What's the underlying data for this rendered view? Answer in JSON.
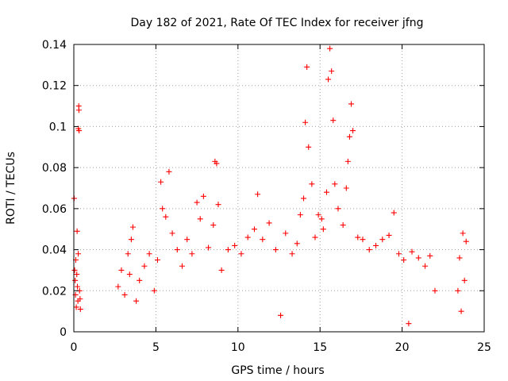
{
  "chart_data": {
    "type": "scatter",
    "title": "Day 182 of 2021, Rate Of TEC Index for receiver jfng",
    "xlabel": "GPS time / hours",
    "ylabel": "ROTI / TECUs",
    "xlim": [
      0,
      25
    ],
    "ylim": [
      0,
      0.14
    ],
    "grid": true,
    "marker": "+",
    "series_color": "#ff0000",
    "x_ticks": [
      0,
      5,
      10,
      15,
      20,
      25
    ],
    "x_tick_labels": [
      "0",
      "5",
      "10",
      "15",
      "20",
      "25"
    ],
    "y_ticks": [
      0,
      0.02,
      0.04,
      0.06,
      0.08,
      0.1,
      0.12,
      0.14
    ],
    "y_tick_labels": [
      "0",
      "0.02",
      "0.04",
      "0.06",
      "0.08",
      "0.1",
      "0.12",
      "0.14"
    ],
    "series": [
      {
        "name": "ROTI",
        "points": [
          [
            0.02,
            0.065
          ],
          [
            0.05,
            0.03
          ],
          [
            0.08,
            0.025
          ],
          [
            0.1,
            0.018
          ],
          [
            0.12,
            0.035
          ],
          [
            0.15,
            0.012
          ],
          [
            0.18,
            0.028
          ],
          [
            0.2,
            0.049
          ],
          [
            0.22,
            0.022
          ],
          [
            0.25,
            0.015
          ],
          [
            0.27,
            0.038
          ],
          [
            0.28,
            0.099
          ],
          [
            0.3,
            0.11
          ],
          [
            0.31,
            0.108
          ],
          [
            0.32,
            0.098
          ],
          [
            0.35,
            0.02
          ],
          [
            0.38,
            0.016
          ],
          [
            0.4,
            0.011
          ],
          [
            2.7,
            0.022
          ],
          [
            2.9,
            0.03
          ],
          [
            3.1,
            0.018
          ],
          [
            3.3,
            0.038
          ],
          [
            3.4,
            0.028
          ],
          [
            3.5,
            0.045
          ],
          [
            3.6,
            0.051
          ],
          [
            3.8,
            0.015
          ],
          [
            4.0,
            0.025
          ],
          [
            4.3,
            0.032
          ],
          [
            4.6,
            0.038
          ],
          [
            4.9,
            0.02
          ],
          [
            5.1,
            0.035
          ],
          [
            5.3,
            0.073
          ],
          [
            5.4,
            0.06
          ],
          [
            5.6,
            0.056
          ],
          [
            5.8,
            0.078
          ],
          [
            6.0,
            0.048
          ],
          [
            6.3,
            0.04
          ],
          [
            6.6,
            0.032
          ],
          [
            6.9,
            0.045
          ],
          [
            7.2,
            0.038
          ],
          [
            7.5,
            0.063
          ],
          [
            7.7,
            0.055
          ],
          [
            7.9,
            0.066
          ],
          [
            8.2,
            0.041
          ],
          [
            8.5,
            0.052
          ],
          [
            8.6,
            0.083
          ],
          [
            8.7,
            0.082
          ],
          [
            8.8,
            0.062
          ],
          [
            9.0,
            0.03
          ],
          [
            9.4,
            0.04
          ],
          [
            9.8,
            0.042
          ],
          [
            10.2,
            0.038
          ],
          [
            10.6,
            0.046
          ],
          [
            11.0,
            0.05
          ],
          [
            11.2,
            0.067
          ],
          [
            11.5,
            0.045
          ],
          [
            11.9,
            0.053
          ],
          [
            12.3,
            0.04
          ],
          [
            12.6,
            0.008
          ],
          [
            12.9,
            0.048
          ],
          [
            13.3,
            0.038
          ],
          [
            13.6,
            0.043
          ],
          [
            13.8,
            0.057
          ],
          [
            14.0,
            0.065
          ],
          [
            14.1,
            0.102
          ],
          [
            14.2,
            0.129
          ],
          [
            14.3,
            0.09
          ],
          [
            14.5,
            0.072
          ],
          [
            14.7,
            0.046
          ],
          [
            14.9,
            0.057
          ],
          [
            15.1,
            0.055
          ],
          [
            15.2,
            0.05
          ],
          [
            15.4,
            0.068
          ],
          [
            15.5,
            0.123
          ],
          [
            15.6,
            0.138
          ],
          [
            15.7,
            0.127
          ],
          [
            15.8,
            0.103
          ],
          [
            15.9,
            0.072
          ],
          [
            16.1,
            0.06
          ],
          [
            16.4,
            0.052
          ],
          [
            16.6,
            0.07
          ],
          [
            16.7,
            0.083
          ],
          [
            16.8,
            0.095
          ],
          [
            16.9,
            0.111
          ],
          [
            17.0,
            0.098
          ],
          [
            17.3,
            0.046
          ],
          [
            17.6,
            0.045
          ],
          [
            18.0,
            0.04
          ],
          [
            18.4,
            0.042
          ],
          [
            18.8,
            0.045
          ],
          [
            19.2,
            0.047
          ],
          [
            19.5,
            0.058
          ],
          [
            19.8,
            0.038
          ],
          [
            20.1,
            0.035
          ],
          [
            20.4,
            0.004
          ],
          [
            20.6,
            0.039
          ],
          [
            21.0,
            0.036
          ],
          [
            21.4,
            0.032
          ],
          [
            21.7,
            0.037
          ],
          [
            22.0,
            0.02
          ],
          [
            23.4,
            0.02
          ],
          [
            23.5,
            0.036
          ],
          [
            23.6,
            0.01
          ],
          [
            23.7,
            0.048
          ],
          [
            23.8,
            0.025
          ],
          [
            23.9,
            0.044
          ]
        ]
      }
    ]
  }
}
